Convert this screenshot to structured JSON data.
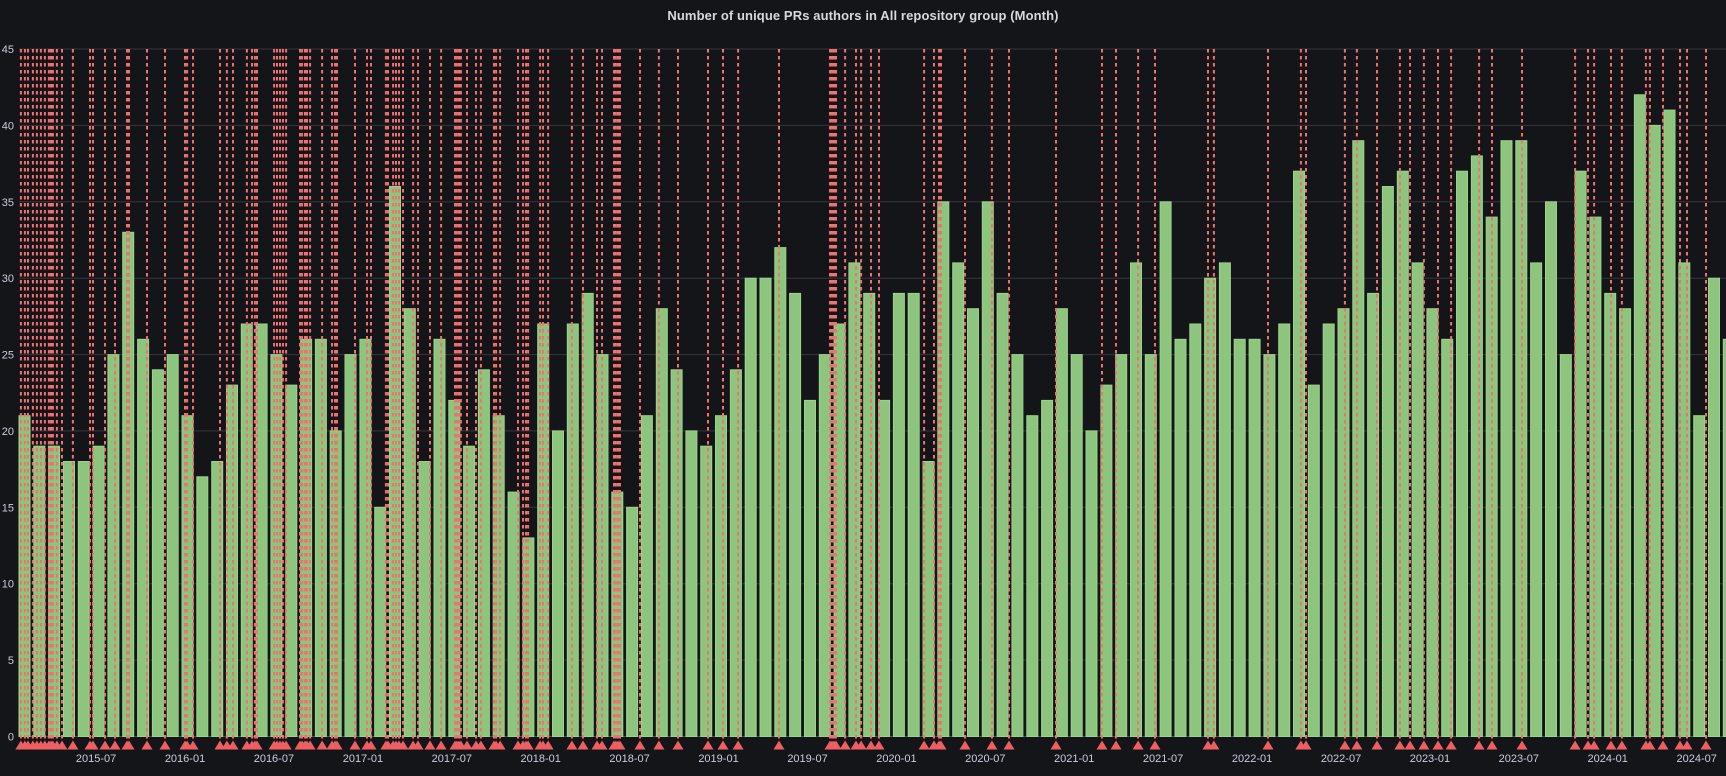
{
  "panel": {
    "title": "Number of unique PRs authors in All repository group (Month)"
  },
  "chart_data": {
    "type": "bar",
    "title": "Number of unique PRs authors in All repository group (Month)",
    "series_name": "unique PR authors",
    "xlabel": "",
    "ylabel": "",
    "ylim": [
      0,
      45
    ],
    "grid": "on",
    "legend": "off",
    "y_ticks": [
      0,
      5,
      10,
      15,
      20,
      25,
      30,
      35,
      40,
      45
    ],
    "months": [
      "2015-02",
      "2015-03",
      "2015-04",
      "2015-05",
      "2015-06",
      "2015-07",
      "2015-08",
      "2015-09",
      "2015-10",
      "2015-11",
      "2015-12",
      "2016-01",
      "2016-02",
      "2016-03",
      "2016-04",
      "2016-05",
      "2016-06",
      "2016-07",
      "2016-08",
      "2016-09",
      "2016-10",
      "2016-11",
      "2016-12",
      "2017-01",
      "2017-02",
      "2017-03",
      "2017-04",
      "2017-05",
      "2017-06",
      "2017-07",
      "2017-08",
      "2017-09",
      "2017-10",
      "2017-11",
      "2017-12",
      "2018-01",
      "2018-02",
      "2018-03",
      "2018-04",
      "2018-05",
      "2018-06",
      "2018-07",
      "2018-08",
      "2018-09",
      "2018-10",
      "2018-11",
      "2018-12",
      "2019-01",
      "2019-02",
      "2019-03",
      "2019-04",
      "2019-05",
      "2019-06",
      "2019-07",
      "2019-08",
      "2019-09",
      "2019-10",
      "2019-11",
      "2019-12",
      "2020-01",
      "2020-02",
      "2020-03",
      "2020-04",
      "2020-05",
      "2020-06",
      "2020-07",
      "2020-08",
      "2020-09",
      "2020-10",
      "2020-11",
      "2020-12",
      "2021-01",
      "2021-02",
      "2021-03",
      "2021-04",
      "2021-05",
      "2021-06",
      "2021-07",
      "2021-08",
      "2021-09",
      "2021-10",
      "2021-11",
      "2021-12",
      "2022-01",
      "2022-02",
      "2022-03",
      "2022-04",
      "2022-05",
      "2022-06",
      "2022-07",
      "2022-08",
      "2022-09",
      "2022-10",
      "2022-11",
      "2022-12",
      "2023-01",
      "2023-02",
      "2023-03",
      "2023-04",
      "2023-05",
      "2023-06",
      "2023-07",
      "2023-08",
      "2023-09",
      "2023-10",
      "2023-11",
      "2023-12",
      "2024-01",
      "2024-02",
      "2024-03",
      "2024-04",
      "2024-05",
      "2024-06",
      "2024-07",
      "2024-08",
      "2024-09"
    ],
    "values": [
      21,
      19,
      19,
      18,
      18,
      19,
      25,
      33,
      26,
      24,
      25,
      21,
      17,
      18,
      23,
      27,
      27,
      25,
      23,
      26,
      26,
      20,
      25,
      26,
      15,
      36,
      28,
      18,
      26,
      22,
      19,
      24,
      21,
      16,
      13,
      27,
      20,
      27,
      29,
      25,
      16,
      15,
      21,
      28,
      24,
      20,
      19,
      21,
      24,
      30,
      30,
      32,
      29,
      22,
      25,
      27,
      31,
      29,
      22,
      29,
      29,
      18,
      35,
      31,
      28,
      35,
      29,
      25,
      21,
      22,
      28,
      25,
      20,
      23,
      25,
      31,
      25,
      35,
      26,
      27,
      30,
      31,
      26,
      26,
      25,
      27,
      37,
      23,
      27,
      28,
      39,
      29,
      36,
      37,
      31,
      28,
      26,
      37,
      38,
      34,
      39,
      39,
      31,
      35,
      25,
      37,
      34,
      29,
      28,
      42,
      40,
      41,
      31,
      21,
      30,
      26
    ],
    "x_tick_indices": [
      5,
      11,
      17,
      23,
      29,
      35,
      41,
      47,
      53,
      59,
      65,
      71,
      77,
      83,
      89,
      95,
      101,
      107,
      113
    ],
    "x_tick_labels": [
      "2015-07",
      "2016-01",
      "2016-07",
      "2017-01",
      "2017-07",
      "2018-01",
      "2018-07",
      "2019-01",
      "2019-07",
      "2020-01",
      "2020-07",
      "2021-01",
      "2021-07",
      "2022-01",
      "2022-07",
      "2023-01",
      "2023-07",
      "2024-01",
      "2024-07"
    ],
    "annotations": {
      "type": "vertical-dashed-lines-with-triangle-markers",
      "positions_month_index": [
        0.13,
        0.4,
        0.61,
        0.94,
        1.21,
        1.48,
        1.75,
        2.02,
        2.16,
        2.29,
        2.56,
        2.9,
        3.64,
        4.79,
        4.99,
        5.8,
        6.48,
        7.29,
        7.42,
        8.64,
        9.85,
        11.2,
        11.34,
        11.74,
        13.56,
        14.03,
        14.44,
        15.38,
        15.72,
        15.92,
        16.06,
        17.21,
        17.41,
        17.61,
        17.81,
        18.02,
        18.96,
        19.1,
        19.3,
        19.43,
        19.64,
        20.45,
        21.12,
        21.32,
        21.46,
        22.67,
        23.48,
        23.75,
        24.76,
        24.9,
        25.24,
        25.44,
        25.64,
        25.91,
        26.59,
        26.92,
        27.73,
        28.48,
        29.42,
        29.55,
        29.69,
        29.82,
        30.23,
        30.84,
        31.17,
        32.05,
        32.19,
        32.46,
        33.67,
        34.01,
        34.21,
        34.35,
        35.16,
        35.36,
        35.7,
        37.31,
        38.06,
        39.0,
        39.34,
        40.15,
        40.28,
        40.42,
        40.55,
        41.9,
        43.18,
        44.47,
        46.49,
        47.5,
        48.52,
        51.28,
        54.72,
        54.86,
        54.99,
        55.13,
        55.74,
        56.48,
        56.82,
        57.49,
        58.03,
        61.07,
        61.74,
        62.08,
        62.21,
        63.83,
        65.65,
        66.8,
        69.97,
        73.08,
        74.02,
        75.51,
        76.65,
        80.23,
        80.63,
        84.28,
        86.5,
        86.84,
        89.47,
        90.28,
        91.63,
        93.18,
        93.86,
        94.8,
        95.75,
        96.63,
        98.52,
        99.39,
        101.42,
        105.0,
        105.87,
        106.28,
        107.42,
        108.16,
        109.78,
        110.05,
        110.93,
        112.08,
        112.55,
        113.83
      ]
    },
    "colors": {
      "bar_fill": "#8dc57e",
      "bar_stroke": "#9dd28b",
      "annotation_line": "#f2706e",
      "annotation_marker": "#ee5f63",
      "background": "#141519",
      "grid_line": "#35373d",
      "axis_line": "#4a4c51",
      "tick_text": "#ccccdc",
      "title_text": "#d8d9da"
    }
  }
}
